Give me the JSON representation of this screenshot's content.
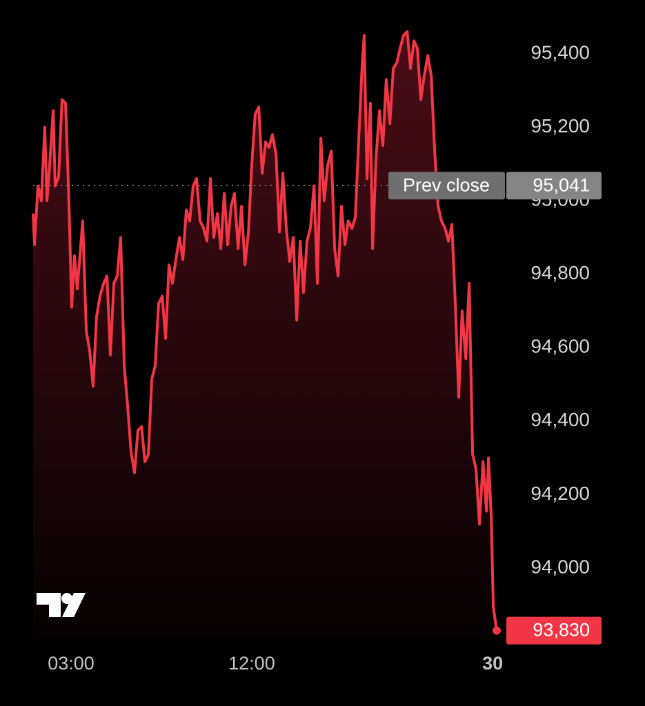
{
  "chart_data": {
    "type": "line",
    "color": "#f23645",
    "x": [
      1.11,
      1.18,
      1.35,
      1.52,
      1.69,
      1.8,
      1.93,
      2.11,
      2.21,
      2.38,
      2.55,
      2.73,
      2.9,
      3.03,
      3.17,
      3.31,
      3.58,
      3.76,
      3.93,
      4.1,
      4.27,
      4.44,
      4.62,
      4.79,
      4.96,
      5.13,
      5.3,
      5.47,
      5.65,
      5.82,
      5.99,
      6.16,
      6.33,
      6.51,
      6.68,
      6.85,
      7.02,
      7.19,
      7.36,
      7.54,
      7.71,
      7.88,
      8.05,
      8.22,
      8.4,
      8.57,
      8.74,
      8.91,
      9.08,
      9.25,
      9.43,
      9.6,
      9.77,
      9.94,
      10.11,
      10.29,
      10.46,
      10.63,
      10.8,
      10.97,
      11.14,
      11.32,
      11.49,
      11.66,
      11.83,
      12.0,
      12.17,
      12.35,
      12.52,
      12.69,
      12.86,
      13.03,
      13.21,
      13.38,
      13.55,
      13.72,
      13.89,
      14.07,
      14.24,
      14.41,
      14.58,
      14.75,
      14.92,
      15.1,
      15.27,
      15.44,
      15.61,
      15.78,
      15.96,
      16.13,
      16.3,
      16.47,
      16.64,
      16.81,
      16.99,
      17.16,
      17.33,
      17.5,
      17.6,
      17.74,
      17.91,
      18.02,
      18.19,
      18.36,
      18.53,
      18.7,
      18.88,
      19.05,
      19.22,
      19.39,
      19.56,
      19.74,
      19.91,
      20.08,
      20.25,
      20.42,
      20.59,
      20.77,
      20.94,
      21.11,
      21.28,
      21.45,
      21.63,
      21.8,
      21.97,
      22.14,
      22.31,
      22.48,
      22.66,
      22.83,
      23.0,
      23.17,
      23.34,
      23.52,
      23.69,
      23.79,
      23.93,
      24.03,
      24.2
    ],
    "values": [
      94965,
      94880,
      95040,
      95000,
      95200,
      95000,
      95095,
      95245,
      95040,
      95065,
      95275,
      95265,
      94985,
      94710,
      94850,
      94760,
      94945,
      94645,
      94590,
      94495,
      94685,
      94740,
      94775,
      94795,
      94580,
      94775,
      94795,
      94900,
      94550,
      94440,
      94315,
      94260,
      94375,
      94385,
      94290,
      94310,
      94515,
      94550,
      94720,
      94740,
      94625,
      94825,
      94775,
      94840,
      94900,
      94840,
      94975,
      94945,
      95040,
      95060,
      94945,
      94925,
      94890,
      95060,
      94900,
      94965,
      94870,
      95020,
      94880,
      94985,
      95020,
      94870,
      94985,
      94825,
      94910,
      95095,
      95235,
      95255,
      95075,
      95160,
      95145,
      95180,
      95125,
      94915,
      95075,
      94925,
      94835,
      94900,
      94675,
      94890,
      94750,
      94890,
      94925,
      95040,
      94775,
      95170,
      95000,
      95095,
      95135,
      94870,
      94795,
      94985,
      94880,
      94945,
      94925,
      94955,
      95170,
      95370,
      95450,
      95060,
      95265,
      94870,
      95115,
      95245,
      95150,
      95330,
      95210,
      95360,
      95375,
      95415,
      95450,
      95460,
      95360,
      95435,
      95415,
      95275,
      95340,
      95395,
      95340,
      95135,
      94985,
      94945,
      94925,
      94890,
      94935,
      94720,
      94465,
      94700,
      94570,
      94775,
      94310,
      94270,
      94120,
      94290,
      94155,
      94300,
      94140,
      93895,
      93830
    ],
    "xlim": [
      1.11,
      24.2
    ],
    "xticks": [
      {
        "value": 3,
        "label": "03:00"
      },
      {
        "value": 12,
        "label": "12:00"
      },
      {
        "value": 24,
        "label": "30"
      }
    ],
    "ylim": [
      93800,
      95470
    ],
    "yticks": [
      {
        "value": 94000,
        "label": "94,000"
      },
      {
        "value": 94200,
        "label": "94,200"
      },
      {
        "value": 94400,
        "label": "94,400"
      },
      {
        "value": 94600,
        "label": "94,600"
      },
      {
        "value": 94800,
        "label": "94,800"
      },
      {
        "value": 95000,
        "label": "95,000"
      },
      {
        "value": 95200,
        "label": "95,200"
      },
      {
        "value": 95400,
        "label": "95,400"
      }
    ],
    "prev_close_label": "Prev close",
    "prev_close": {
      "value": 95041,
      "label": "95,041"
    },
    "current_price": {
      "value": 93830,
      "label": "93,830"
    }
  }
}
